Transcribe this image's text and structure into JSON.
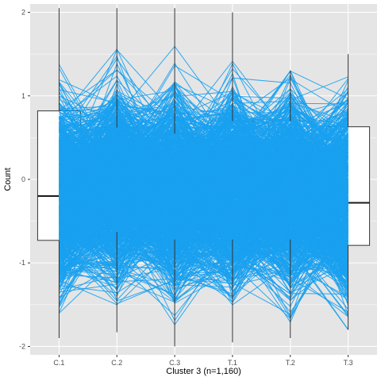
{
  "chart_data": {
    "type": "parallel-coordinates",
    "title": "",
    "xlabel": "Cluster 3 (n=1,160)",
    "ylabel": "Count",
    "categories": [
      "C.1",
      "C.2",
      "C.3",
      "T.1",
      "T.2",
      "T.3"
    ],
    "ylim": [
      -2.1,
      2.1
    ],
    "yticks": [
      -2,
      -1,
      0,
      1,
      2
    ],
    "line_color": "#1aa1f0",
    "n_lines": 1160,
    "panel_background": "#e5e5e5",
    "grid_color": "#ffffff",
    "boxplots": [
      {
        "category": "C.1",
        "min": -1.9,
        "q1": -0.73,
        "median": -0.2,
        "q3": 0.82,
        "max": 2.05
      },
      {
        "category": "C.2",
        "min": -1.83,
        "q1": -0.63,
        "median": -0.02,
        "q3": 0.62,
        "max": 2.05
      },
      {
        "category": "C.3",
        "min": -2.0,
        "q1": -0.72,
        "median": -0.2,
        "q3": 0.55,
        "max": 2.05
      },
      {
        "category": "T.1",
        "min": -1.95,
        "q1": -0.72,
        "median": -0.07,
        "q3": 0.7,
        "max": 2.0
      },
      {
        "category": "T.2",
        "min": -1.9,
        "q1": -0.72,
        "median": -0.15,
        "q3": 0.7,
        "max": 1.3
      },
      {
        "category": "T.3",
        "min": -1.8,
        "q1": -0.79,
        "median": -0.28,
        "q3": 0.63,
        "max": 1.5
      }
    ],
    "grid": true,
    "legend": "none"
  }
}
